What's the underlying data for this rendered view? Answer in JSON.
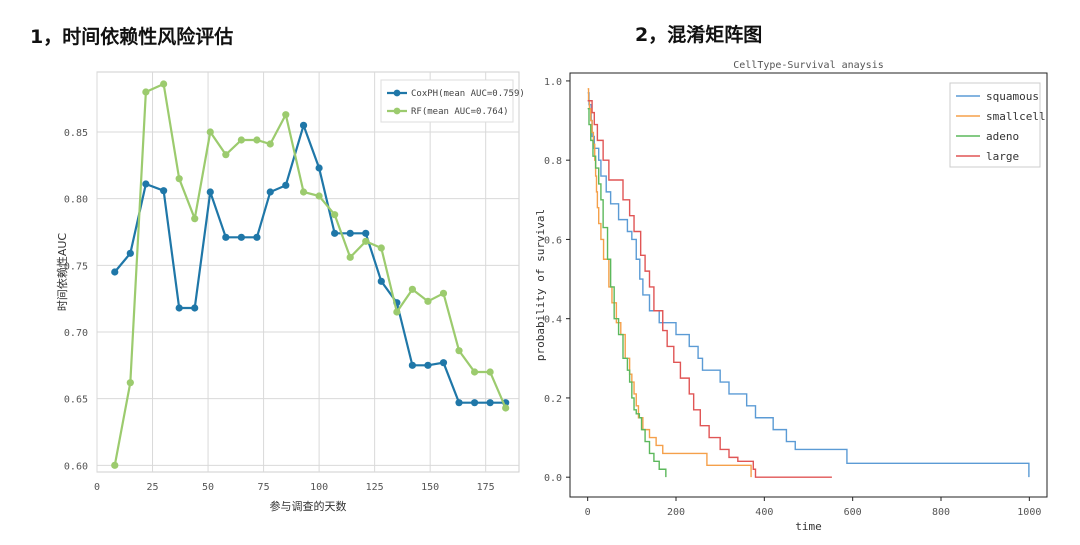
{
  "headings": {
    "left": "1，时间依赖性风险评估",
    "right": "2，混淆矩阵图"
  },
  "chart_data": [
    {
      "type": "line",
      "title": "",
      "xlabel": "参与调查的天数",
      "ylabel": "时间依赖性AUC",
      "xlim": [
        0,
        190
      ],
      "ylim": [
        0.595,
        0.895
      ],
      "xticks": [
        "0",
        "25",
        "50",
        "75",
        "100",
        "125",
        "150",
        "175"
      ],
      "yticks": [
        "0.60",
        "0.65",
        "0.70",
        "0.75",
        "0.80",
        "0.85"
      ],
      "grid": true,
      "legend": "top-right",
      "series": [
        {
          "name": "CoxPH(mean AUC=0.759)",
          "color": "#1f77a8",
          "x": [
            8,
            15,
            22,
            30,
            37,
            44,
            51,
            58,
            65,
            72,
            78,
            85,
            93,
            100,
            107,
            114,
            121,
            128,
            135,
            142,
            149,
            156,
            163,
            170,
            177,
            184
          ],
          "y": [
            0.745,
            0.759,
            0.811,
            0.806,
            0.718,
            0.718,
            0.805,
            0.771,
            0.771,
            0.771,
            0.805,
            0.81,
            0.855,
            0.823,
            0.774,
            0.774,
            0.774,
            0.738,
            0.722,
            0.675,
            0.675,
            0.677,
            0.647,
            0.647,
            0.647,
            0.647
          ]
        },
        {
          "name": "RF(mean AUC=0.764)",
          "color": "#9ccb6e",
          "x": [
            8,
            15,
            22,
            30,
            37,
            44,
            51,
            58,
            65,
            72,
            78,
            85,
            93,
            100,
            107,
            114,
            121,
            128,
            135,
            142,
            149,
            156,
            163,
            170,
            177,
            184
          ],
          "y": [
            0.6,
            0.662,
            0.88,
            0.886,
            0.815,
            0.785,
            0.85,
            0.833,
            0.844,
            0.844,
            0.841,
            0.863,
            0.805,
            0.802,
            0.788,
            0.756,
            0.768,
            0.763,
            0.715,
            0.732,
            0.723,
            0.729,
            0.686,
            0.67,
            0.67,
            0.643
          ]
        }
      ]
    },
    {
      "type": "line",
      "title": "CellType-Survival anaysis",
      "xlabel": "time",
      "ylabel": "probability of survival",
      "xlim": [
        -40,
        1040
      ],
      "ylim": [
        -0.05,
        1.02
      ],
      "xticks": [
        "0",
        "200",
        "400",
        "600",
        "800",
        "1000"
      ],
      "yticks": [
        "0.0",
        "0.2",
        "0.4",
        "0.6",
        "0.8",
        "1.0"
      ],
      "grid": false,
      "legend": "top-right",
      "series": [
        {
          "name": "squamous",
          "color": "#5b9bd5",
          "x": [
            0,
            3,
            8,
            10,
            15,
            25,
            30,
            42,
            52,
            70,
            90,
            100,
            110,
            118,
            125,
            140,
            162,
            200,
            230,
            250,
            260,
            300,
            320,
            360,
            380,
            420,
            450,
            470,
            500,
            550,
            587,
            991,
            999
          ],
          "y": [
            0.97,
            0.94,
            0.9,
            0.86,
            0.83,
            0.8,
            0.76,
            0.72,
            0.69,
            0.65,
            0.62,
            0.6,
            0.55,
            0.5,
            0.46,
            0.42,
            0.39,
            0.36,
            0.33,
            0.3,
            0.27,
            0.24,
            0.21,
            0.18,
            0.15,
            0.12,
            0.09,
            0.07,
            0.07,
            0.07,
            0.035,
            0.035,
            0.0
          ]
        },
        {
          "name": "smallcell",
          "color": "#f5a04a",
          "x": [
            0,
            2,
            4,
            7,
            10,
            13,
            16,
            18,
            20,
            22,
            25,
            30,
            36,
            48,
            55,
            65,
            75,
            85,
            95,
            100,
            105,
            110,
            115,
            125,
            140,
            155,
            170,
            250,
            270,
            370
          ],
          "y": [
            0.98,
            0.95,
            0.93,
            0.9,
            0.87,
            0.84,
            0.8,
            0.76,
            0.72,
            0.68,
            0.64,
            0.6,
            0.55,
            0.48,
            0.44,
            0.39,
            0.36,
            0.3,
            0.26,
            0.24,
            0.21,
            0.18,
            0.15,
            0.12,
            0.1,
            0.08,
            0.06,
            0.06,
            0.03,
            0.0
          ]
        },
        {
          "name": "adeno",
          "color": "#5cb85c",
          "x": [
            0,
            3,
            7,
            12,
            18,
            25,
            30,
            35,
            45,
            52,
            60,
            70,
            80,
            90,
            95,
            100,
            105,
            110,
            117,
            122,
            130,
            140,
            150,
            162,
            177
          ],
          "y": [
            0.93,
            0.89,
            0.85,
            0.81,
            0.78,
            0.74,
            0.7,
            0.63,
            0.55,
            0.48,
            0.4,
            0.36,
            0.3,
            0.27,
            0.24,
            0.2,
            0.17,
            0.16,
            0.15,
            0.12,
            0.09,
            0.06,
            0.04,
            0.02,
            0.0
          ]
        },
        {
          "name": "large",
          "color": "#e05555",
          "x": [
            0,
            10,
            15,
            22,
            35,
            48,
            80,
            95,
            105,
            120,
            130,
            140,
            150,
            170,
            180,
            195,
            210,
            230,
            240,
            255,
            275,
            300,
            320,
            340,
            375,
            380,
            553
          ],
          "y": [
            0.95,
            0.92,
            0.89,
            0.85,
            0.8,
            0.75,
            0.7,
            0.66,
            0.62,
            0.56,
            0.52,
            0.48,
            0.42,
            0.37,
            0.33,
            0.29,
            0.25,
            0.21,
            0.17,
            0.13,
            0.1,
            0.07,
            0.05,
            0.04,
            0.02,
            0.0,
            0.0
          ]
        }
      ]
    }
  ]
}
